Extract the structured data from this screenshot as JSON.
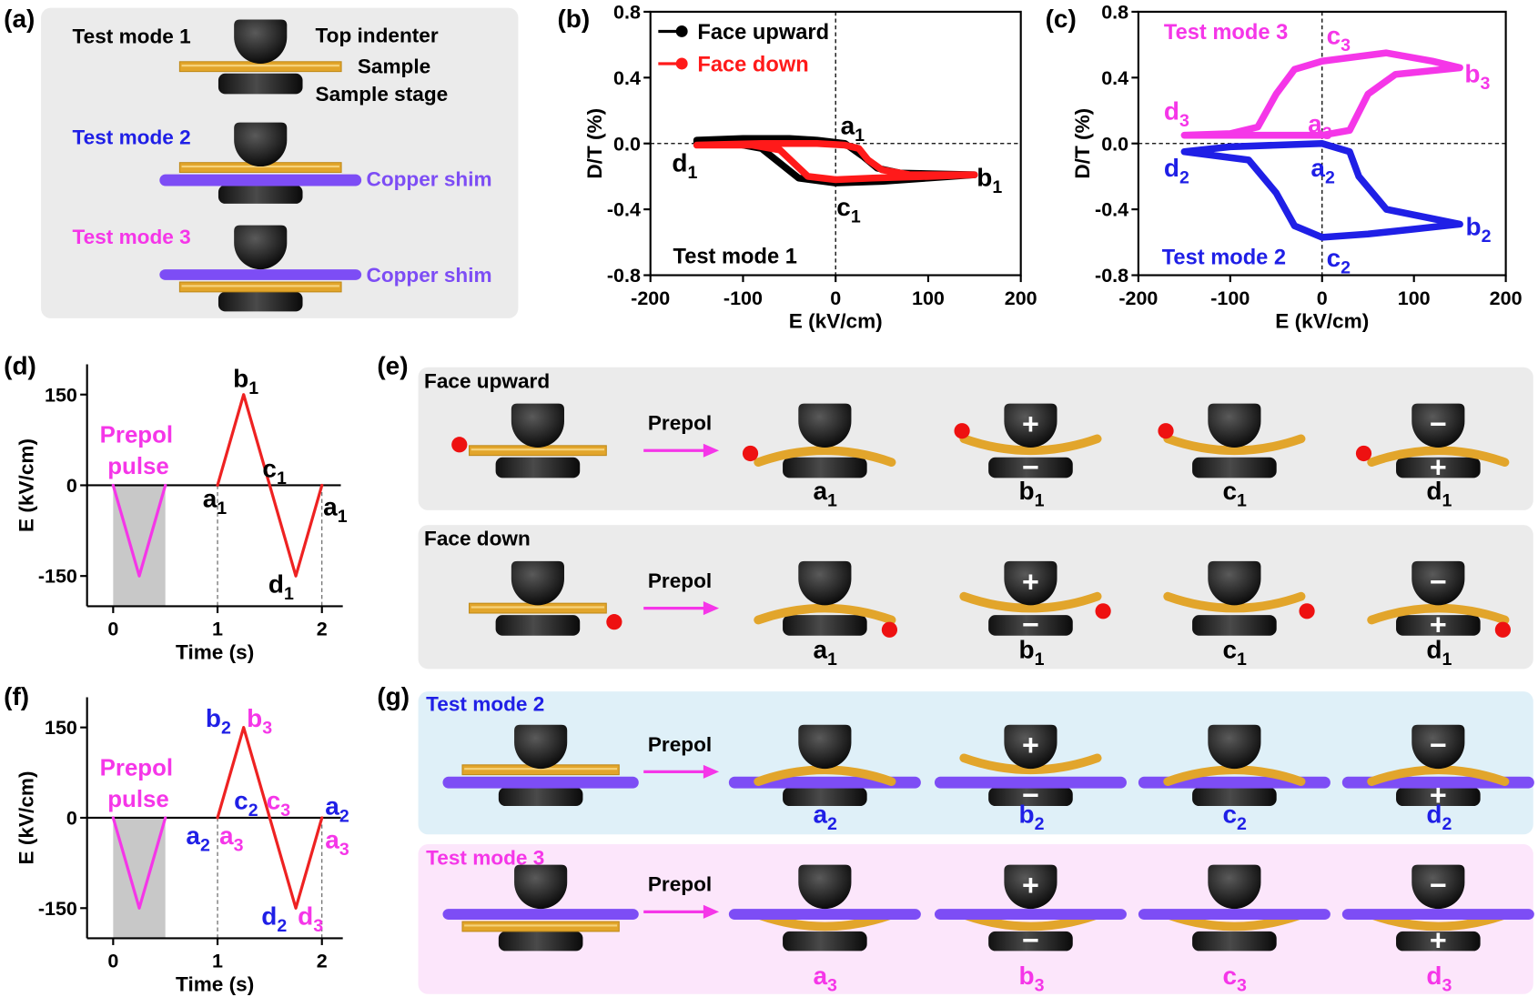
{
  "panel_labels": [
    "(a)",
    "(b)",
    "(c)",
    "(d)",
    "(e)",
    "(f)",
    "(g)"
  ],
  "panel_a": {
    "modes": [
      "Test mode 1",
      "Test mode 2",
      "Test mode 3"
    ],
    "top_indenter": "Top indenter",
    "sample": "Sample",
    "sample_stage": "Sample stage",
    "copper_shim": "Copper shim"
  },
  "symbols": {
    "arrow": "Prepol",
    "plus": "+",
    "minus": "−"
  },
  "chart_data": [
    {
      "type": "line",
      "xlabel": "E (kV/cm)",
      "ylabel": "D/T (%)",
      "xlim": [
        -200,
        200
      ],
      "ylim": [
        -0.8,
        0.8
      ],
      "xticks": [
        -200,
        -100,
        0,
        100,
        200
      ],
      "yticks": [
        -0.8,
        -0.4,
        {
          "value": 0,
          "label": "0.0"
        },
        0.4,
        0.8
      ],
      "frame": "box",
      "zero_lines": true,
      "legend": "upper left",
      "note": "Test mode 1",
      "series": [
        {
          "name": "Face upward",
          "color": "#000000",
          "x": [
            -150,
            -100,
            -50,
            -20,
            10,
            30,
            45,
            70,
            150,
            100,
            50,
            0,
            -40,
            -60,
            -80,
            -110,
            -150
          ],
          "values": [
            0.02,
            0.03,
            0.03,
            0.02,
            0.0,
            -0.08,
            -0.15,
            -0.18,
            -0.19,
            -0.21,
            -0.23,
            -0.24,
            -0.21,
            -0.12,
            -0.03,
            0.0,
            0.01
          ]
        },
        {
          "name": "Face down",
          "color": "#ff1a1a",
          "x": [
            -150,
            -80,
            -20,
            10,
            25,
            35,
            50,
            80,
            150,
            100,
            40,
            0,
            -30,
            -45,
            -60,
            -90,
            -150
          ],
          "values": [
            -0.01,
            0.0,
            0.0,
            -0.01,
            -0.03,
            -0.1,
            -0.16,
            -0.19,
            -0.19,
            -0.2,
            -0.21,
            -0.22,
            -0.2,
            -0.12,
            -0.04,
            -0.01,
            -0.01
          ]
        }
      ],
      "annotations": [
        {
          "text": "d",
          "sub": "1"
        },
        {
          "text": "a",
          "sub": "1"
        },
        {
          "text": "c",
          "sub": "1"
        },
        {
          "text": "b",
          "sub": "1"
        }
      ]
    },
    {
      "type": "line",
      "xlabel": "E (kV/cm)",
      "ylabel": "D/T (%)",
      "xlim": [
        -200,
        200
      ],
      "ylim": [
        -0.8,
        0.8
      ],
      "xticks": [
        -200,
        -100,
        0,
        100,
        200
      ],
      "yticks": [
        -0.8,
        -0.4,
        {
          "value": 0,
          "label": "0.0"
        },
        0.4,
        0.8
      ],
      "frame": "box",
      "zero_lines": true,
      "legend": "labels",
      "series": [
        {
          "name": "Test mode 3",
          "color": "#f536e8",
          "x": [
            -150,
            -100,
            0,
            30,
            50,
            80,
            150,
            120,
            70,
            0,
            -30,
            -50,
            -70,
            -100,
            -150
          ],
          "values": [
            0.05,
            0.05,
            0.05,
            0.08,
            0.3,
            0.42,
            0.46,
            0.5,
            0.55,
            0.5,
            0.45,
            0.3,
            0.1,
            0.06,
            0.05
          ]
        },
        {
          "name": "Test mode 2",
          "color": "#1f1fe6",
          "x": [
            -150,
            -100,
            0,
            30,
            40,
            70,
            150,
            100,
            50,
            0,
            -30,
            -50,
            -80,
            -150
          ],
          "values": [
            -0.05,
            -0.02,
            0.0,
            -0.05,
            -0.2,
            -0.4,
            -0.49,
            -0.52,
            -0.55,
            -0.57,
            -0.5,
            -0.3,
            -0.1,
            -0.05
          ]
        }
      ],
      "annotations": [
        {
          "text": "c",
          "sub": "3",
          "color": "#f536e8"
        },
        {
          "text": "b",
          "sub": "3",
          "color": "#f536e8"
        },
        {
          "text": "d",
          "sub": "3",
          "color": "#f536e8"
        },
        {
          "text": "a",
          "sub": "3",
          "color": "#f536e8"
        },
        {
          "text": "d",
          "sub": "2",
          "color": "#1f1fe6"
        },
        {
          "text": "a",
          "sub": "2",
          "color": "#1f1fe6"
        },
        {
          "text": "b",
          "sub": "2",
          "color": "#1f1fe6"
        },
        {
          "text": "c",
          "sub": "2",
          "color": "#1f1fe6"
        }
      ]
    },
    {
      "type": "line",
      "xlabel": "Time (s)",
      "ylabel": "E (kV/cm)",
      "xlim": [
        -0.25,
        2.2
      ],
      "ylim": [
        -200,
        200
      ],
      "xticks": [
        0,
        1,
        2
      ],
      "yticks": [
        -150,
        0,
        150
      ],
      "frame": "axes",
      "zero_line": true,
      "shade": [
        0,
        0.5
      ],
      "shade_color": "#c8c8c8",
      "vlines": [
        1,
        2
      ],
      "notes": [
        "Prepol",
        "pulse"
      ],
      "series": [
        {
          "color": "#f536e8",
          "x": [
            0,
            0.25,
            0.5
          ],
          "values": [
            0,
            -150,
            0
          ]
        },
        {
          "color": "#ee2222",
          "x": [
            1,
            1.25,
            1.75,
            2
          ],
          "values": [
            0,
            150,
            -150,
            0
          ]
        }
      ],
      "annotations": [
        {
          "text": "b",
          "sub": "1"
        },
        {
          "text": "c",
          "sub": "1"
        },
        {
          "text": "a",
          "sub": "1"
        },
        {
          "text": "a",
          "sub": "1"
        },
        {
          "text": "d",
          "sub": "1"
        }
      ]
    },
    {
      "type": "line",
      "xlabel": "Time (s)",
      "ylabel": "E (kV/cm)",
      "xlim": [
        -0.25,
        2.2
      ],
      "ylim": [
        -200,
        200
      ],
      "xticks": [
        0,
        1,
        2
      ],
      "yticks": [
        -150,
        0,
        150
      ],
      "frame": "axes",
      "zero_line": true,
      "shade": [
        0,
        0.5
      ],
      "shade_color": "#c8c8c8",
      "vlines": [
        1,
        2
      ],
      "notes": [
        "Prepol",
        "pulse"
      ],
      "series": [
        {
          "color": "#f536e8",
          "x": [
            0,
            0.25,
            0.5
          ],
          "values": [
            0,
            -150,
            0
          ]
        },
        {
          "color": "#ee2222",
          "x": [
            1,
            1.25,
            1.75,
            2
          ],
          "values": [
            0,
            150,
            -150,
            0
          ]
        }
      ],
      "annotations": [
        {
          "text": "b",
          "sub": "2",
          "color": "#1f1fe6"
        },
        {
          "text": "b",
          "sub": "3",
          "color": "#f536e8"
        },
        {
          "text": "c",
          "sub": "2",
          "color": "#1f1fe6"
        },
        {
          "text": "c",
          "sub": "3",
          "color": "#f536e8"
        },
        {
          "text": "a",
          "sub": "2",
          "color": "#1f1fe6"
        },
        {
          "text": "a",
          "sub": "3",
          "color": "#f536e8"
        },
        {
          "text": "a",
          "sub": "2",
          "color": "#1f1fe6"
        },
        {
          "text": "a",
          "sub": "3",
          "color": "#f536e8"
        },
        {
          "text": "d",
          "sub": "2",
          "color": "#1f1fe6"
        },
        {
          "text": "d",
          "sub": "3",
          "color": "#f536e8"
        }
      ]
    }
  ],
  "panel_e": {
    "rows": [
      {
        "title": "Face upward"
      },
      {
        "title": "Face down"
      }
    ],
    "states": [
      {
        "text": "a",
        "sub": "1"
      },
      {
        "text": "b",
        "sub": "1"
      },
      {
        "text": "c",
        "sub": "1"
      },
      {
        "text": "d",
        "sub": "1"
      }
    ]
  },
  "panel_g": {
    "rows": [
      {
        "title": "Test mode 2",
        "color": "#1f1fe6",
        "states": [
          {
            "text": "a",
            "sub": "2"
          },
          {
            "text": "b",
            "sub": "2"
          },
          {
            "text": "c",
            "sub": "2"
          },
          {
            "text": "d",
            "sub": "2"
          }
        ]
      },
      {
        "title": "Test mode 3",
        "color": "#f536e8",
        "states": [
          {
            "text": "a",
            "sub": "3"
          },
          {
            "text": "b",
            "sub": "3"
          },
          {
            "text": "c",
            "sub": "3"
          },
          {
            "text": "d",
            "sub": "3"
          }
        ]
      }
    ]
  }
}
